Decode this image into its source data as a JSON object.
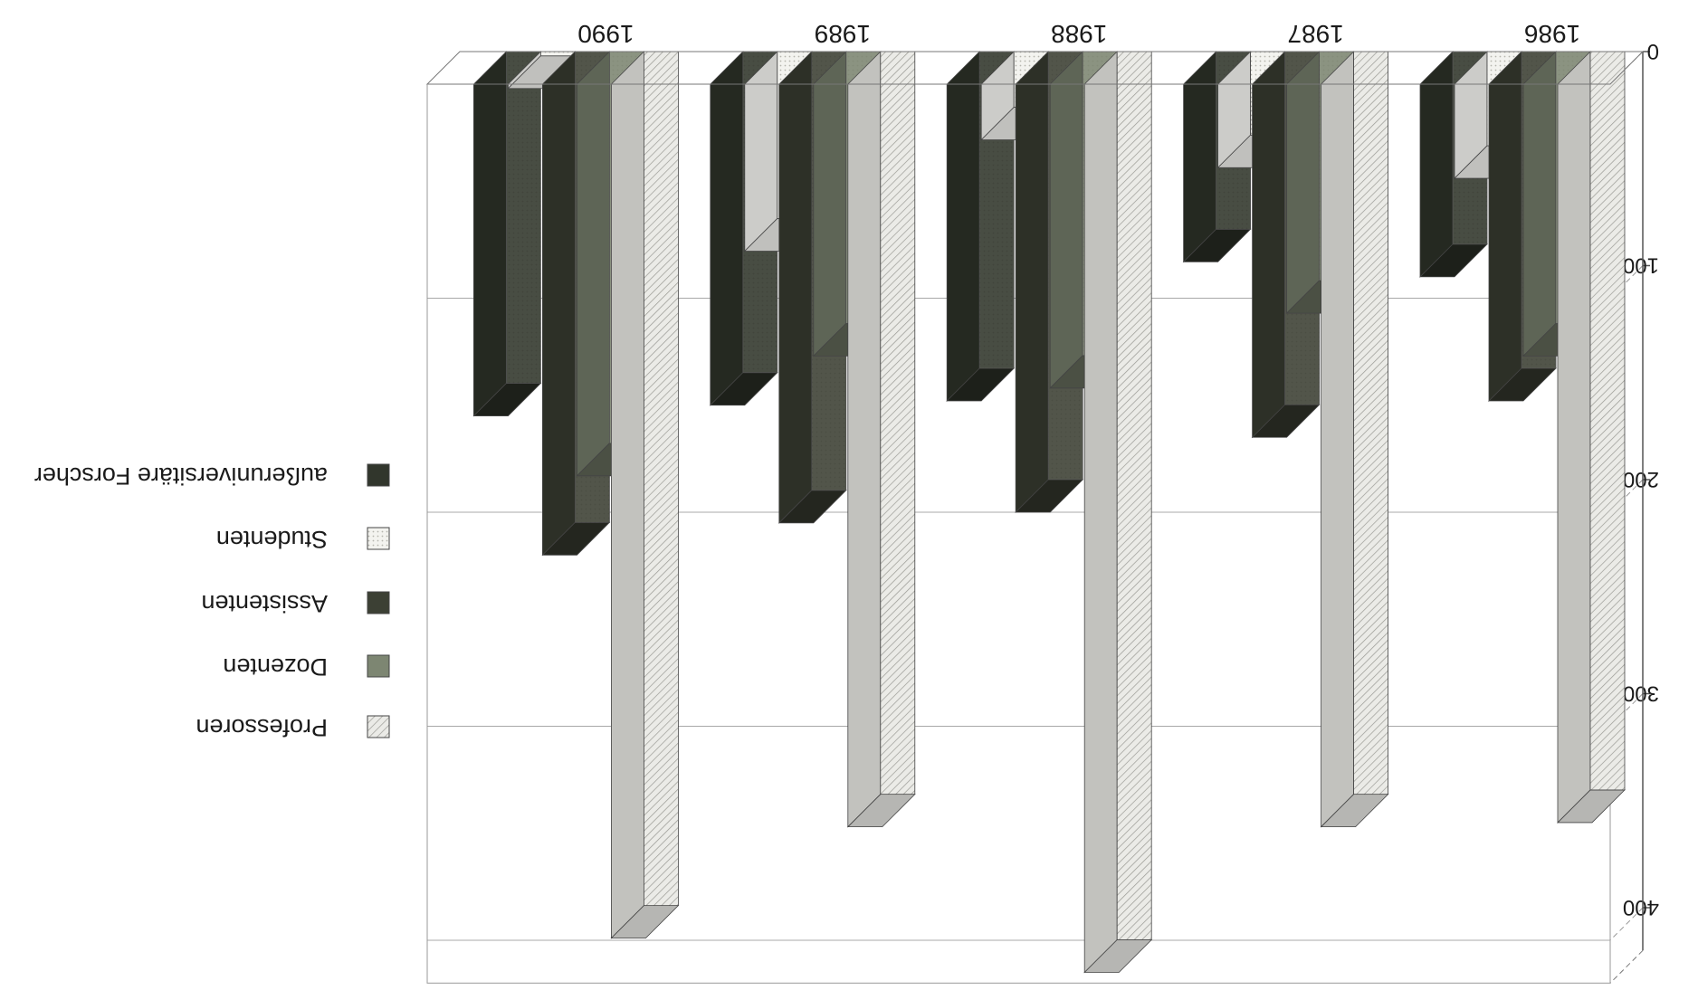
{
  "chart_data": {
    "type": "bar",
    "orientation": "upside-down (rotated 180°)",
    "three_d": true,
    "categories": [
      "1986",
      "1987",
      "1988",
      "1989",
      "1990"
    ],
    "y_ticks": [
      "0",
      "100",
      "200",
      "300",
      "400"
    ],
    "ylim": [
      0,
      420
    ],
    "grid": true,
    "legend_position": "left",
    "series": [
      {
        "name": "Professoren",
        "key": "prof",
        "values": [
          345,
          347,
          415,
          347,
          399
        ],
        "color": "#e4e4e0",
        "pattern": "hatch"
      },
      {
        "name": "Dozenten",
        "key": "doz",
        "values": [
          127,
          107,
          142,
          127,
          183
        ],
        "color": "#7d8672",
        "pattern": "solid"
      },
      {
        "name": "Assistenten",
        "key": "assi",
        "values": [
          148,
          165,
          200,
          205,
          220
        ],
        "color": "#3c4034",
        "pattern": "solid"
      },
      {
        "name": "Studenten",
        "key": "stud",
        "values": [
          44,
          39,
          26,
          78,
          2
        ],
        "color": "#f0f0ec",
        "pattern": "dots"
      },
      {
        "name": "außeruniversitäre Forscher",
        "key": "auss",
        "values": [
          90,
          83,
          148,
          150,
          155
        ],
        "color": "#31362c",
        "pattern": "solid"
      }
    ]
  }
}
